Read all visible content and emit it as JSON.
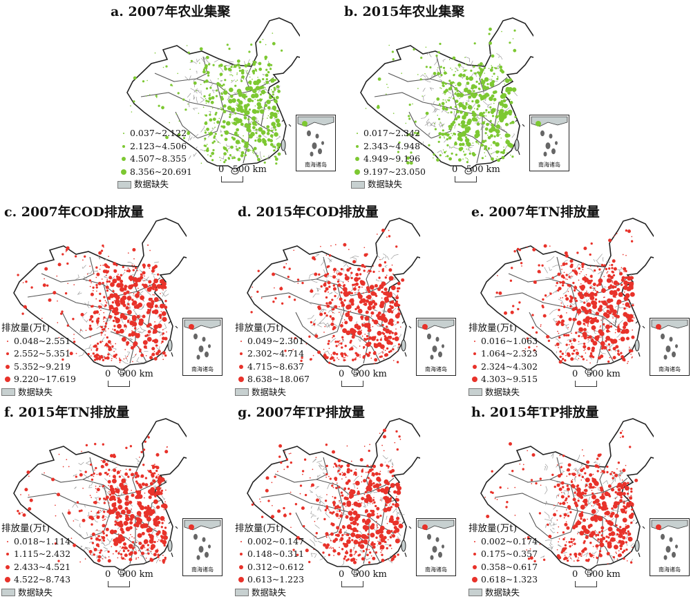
{
  "colors": {
    "agri": "#7dc832",
    "emission": "#e8322a",
    "missing": "#c7d0d0",
    "boundary": "#444444"
  },
  "labels": {
    "scale": "0   500 km",
    "inset": "南海诸岛",
    "missing": "数据缺失",
    "emission_unit": "排放量(万t)"
  },
  "panels": [
    {
      "id": "a",
      "title": "a. 2007年农业集聚",
      "theme": "agri",
      "legend_title": "",
      "classes": [
        "0.037~2.122",
        "2.123~4.506",
        "4.507~8.355",
        "8.356~20.691"
      ]
    },
    {
      "id": "b",
      "title": "b. 2015年农业集聚",
      "theme": "agri",
      "legend_title": "",
      "classes": [
        "0.017~2.342",
        "2.343~4.948",
        "4.949~9.196",
        "9.197~23.050"
      ]
    },
    {
      "id": "c",
      "title": "c. 2007年COD排放量",
      "theme": "emission",
      "legend_title": "排放量(万t)",
      "classes": [
        "0.048~2.551",
        "2.552~5.351",
        "5.352~9.219",
        "9.220~17.619"
      ]
    },
    {
      "id": "d",
      "title": "d. 2015年COD排放量",
      "theme": "emission",
      "legend_title": "排放量(万t)",
      "classes": [
        "0.049~2.301",
        "2.302~4.714",
        "4.715~8.637",
        "8.638~18.067"
      ]
    },
    {
      "id": "e",
      "title": "e. 2007年TN排放量",
      "theme": "emission",
      "legend_title": "排放量(万t)",
      "classes": [
        "0.016~1.063",
        "1.064~2.323",
        "2.324~4.302",
        "4.303~9.515"
      ]
    },
    {
      "id": "f",
      "title": "f. 2015年TN排放量",
      "theme": "emission",
      "legend_title": "排放量(万t)",
      "classes": [
        "0.018~1.114",
        "1.115~2.432",
        "2.433~4.521",
        "4.522~8.743"
      ]
    },
    {
      "id": "g",
      "title": "g. 2007年TP排放量",
      "theme": "emission",
      "legend_title": "排放量(万t)",
      "classes": [
        "0.002~0.147",
        "0.148~0.311",
        "0.312~0.612",
        "0.613~1.223"
      ]
    },
    {
      "id": "h",
      "title": "h. 2015年TP排放量",
      "theme": "emission",
      "legend_title": "排放量(万t)",
      "classes": [
        "0.002~0.174",
        "0.175~0.357",
        "0.358~0.617",
        "0.618~1.323"
      ]
    }
  ]
}
